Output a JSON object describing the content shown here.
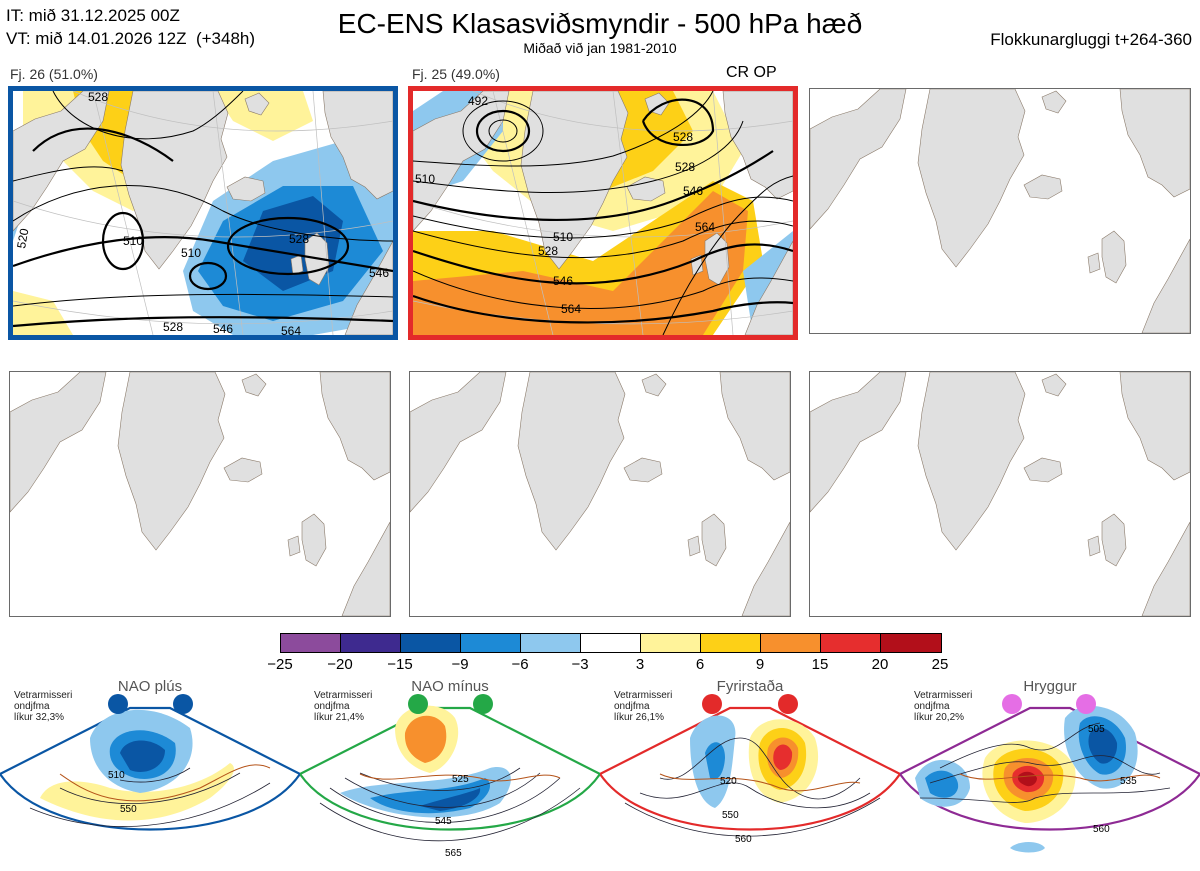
{
  "header": {
    "it_line": "IT: mið 31.12.2025 00Z",
    "vt_line": "VT: mið 14.01.2026 12Z  (+348h)",
    "title": "EC-ENS Klasasviðsmyndir - 500 hPa hæð",
    "subtitle": "Miðað við jan 1981-2010",
    "window": "Flokkunargluggi t+264-360"
  },
  "clusters": [
    {
      "label": "Fj. 26 (51.0%)",
      "contour_labels": [
        "528",
        "510",
        "528",
        "510",
        "528",
        "546",
        "520",
        "546",
        "564"
      ]
    },
    {
      "label": "Fj. 25 (49.0%)",
      "tag": "CR OP",
      "contour_labels": [
        "492",
        "510",
        "510",
        "528",
        "528",
        "546",
        "546",
        "564",
        "564",
        "528"
      ]
    }
  ],
  "colorbar": {
    "ticks": [
      "−25",
      "−20",
      "−15",
      "−9",
      "−6",
      "−3",
      "3",
      "6",
      "9",
      "15",
      "20",
      "25"
    ],
    "colors": [
      "#8c4b9c",
      "#3e2a8f",
      "#0a56a4",
      "#1d8ad6",
      "#8ec8ee",
      "#ffffff",
      "#fff39a",
      "#fdd017",
      "#f7902d",
      "#e62e2e",
      "#b20f1a"
    ]
  },
  "regimes": [
    {
      "name": "NAO plús",
      "note": "Vetrarmisseri\nondjfma\nlíkur 32,3%",
      "color": "#0a56a4",
      "labels": [
        "510",
        "550"
      ]
    },
    {
      "name": "NAO mínus",
      "note": "Vetrarmisseri\nondjfma\nlíkur 21,4%",
      "color": "#24a847",
      "labels": [
        "525",
        "545",
        "565"
      ]
    },
    {
      "name": "Fyrirstaða",
      "note": "Vetrarmisseri\nondjfma\nlíkur 26,1%",
      "color": "#e32a2a",
      "labels": [
        "520",
        "550",
        "560"
      ]
    },
    {
      "name": "Hryggur",
      "note": "Vetrarmisseri\nondjfma\nlíkur 20,2%",
      "color": "#8e2a94",
      "labels": [
        "505",
        "535",
        "560"
      ]
    }
  ]
}
